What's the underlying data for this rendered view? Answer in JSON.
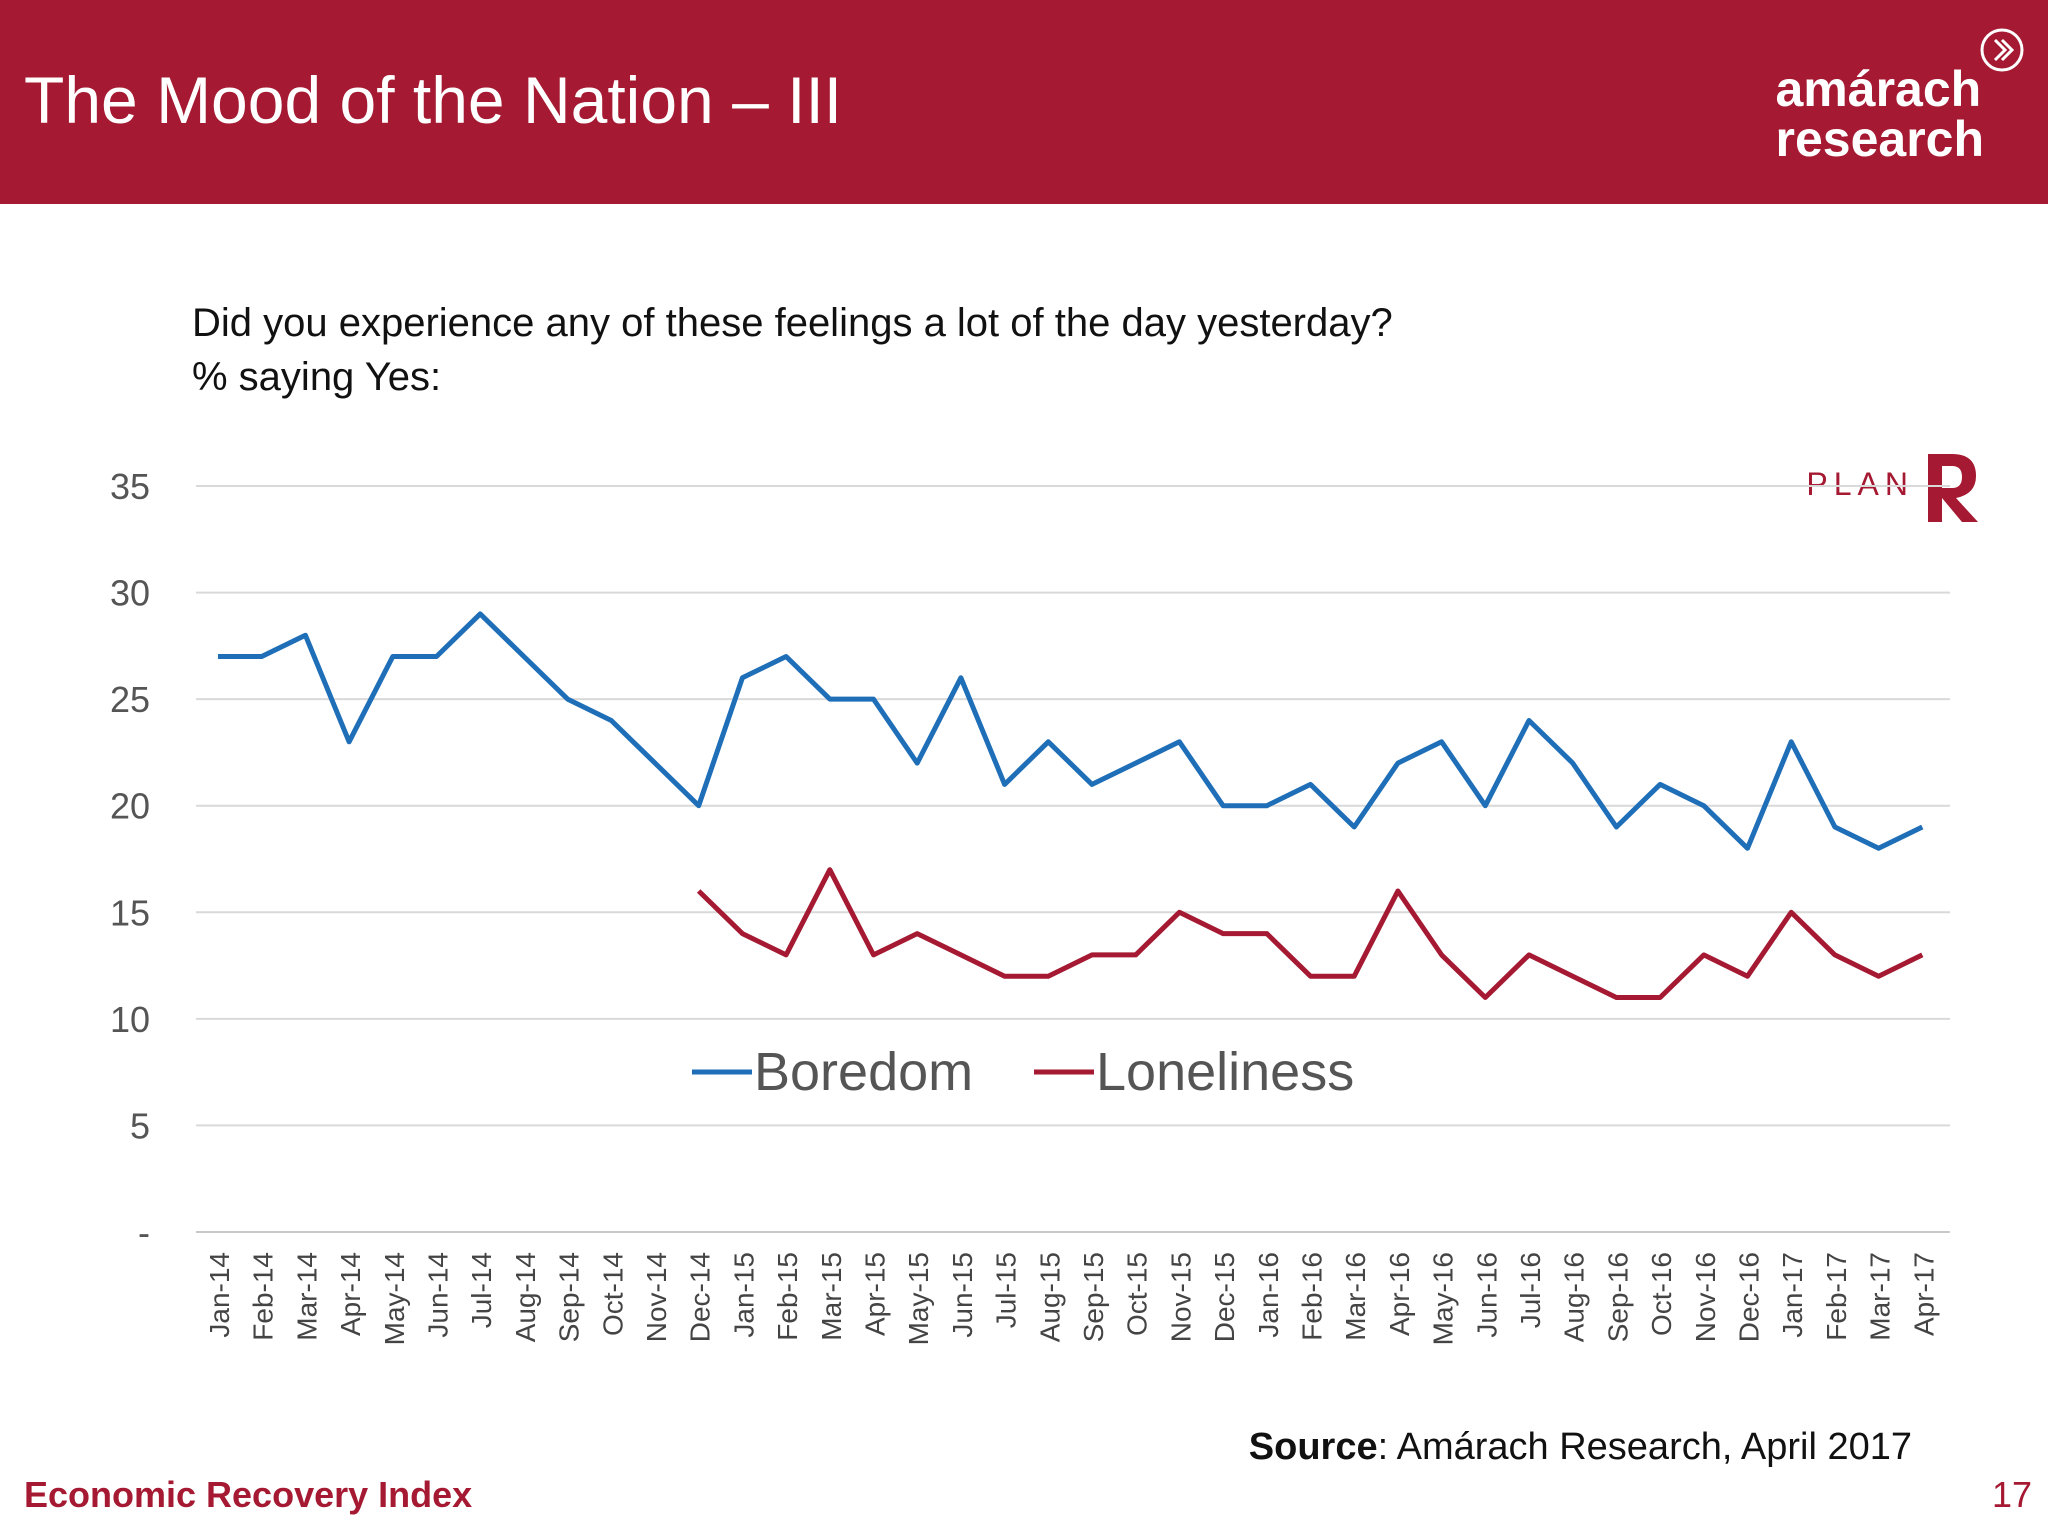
{
  "header": {
    "title": "The Mood of the Nation – III",
    "brand_line1": "amárach",
    "brand_line2": "research",
    "accent_color": "#a51a32"
  },
  "question": {
    "line1": "Did you experience any of these feelings a lot of the day yesterday?",
    "line2": "% saying Yes:"
  },
  "plan_logo": {
    "text": "PLAN",
    "letter": "R"
  },
  "source": {
    "label": "Source",
    "text": ": Amárach Research, April 2017"
  },
  "footer": {
    "left": "Economic Recovery Index",
    "page_number": "17"
  },
  "chart_data": {
    "type": "line",
    "title": "",
    "xlabel": "",
    "ylabel": "",
    "ylim": [
      0,
      35
    ],
    "yticks": [
      {
        "value": 0,
        "label": "-"
      },
      {
        "value": 5,
        "label": "5"
      },
      {
        "value": 10,
        "label": "10"
      },
      {
        "value": 15,
        "label": "15"
      },
      {
        "value": 20,
        "label": "20"
      },
      {
        "value": 25,
        "label": "25"
      },
      {
        "value": 30,
        "label": "30"
      },
      {
        "value": 35,
        "label": "35"
      }
    ],
    "grid": true,
    "legend_position": "inside-middle",
    "categories": [
      "Jan-14",
      "Feb-14",
      "Mar-14",
      "Apr-14",
      "May-14",
      "Jun-14",
      "Jul-14",
      "Aug-14",
      "Sep-14",
      "Oct-14",
      "Nov-14",
      "Dec-14",
      "Jan-15",
      "Feb-15",
      "Mar-15",
      "Apr-15",
      "May-15",
      "Jun-15",
      "Jul-15",
      "Aug-15",
      "Sep-15",
      "Oct-15",
      "Nov-15",
      "Dec-15",
      "Jan-16",
      "Feb-16",
      "Mar-16",
      "Apr-16",
      "May-16",
      "Jun-16",
      "Jul-16",
      "Aug-16",
      "Sep-16",
      "Oct-16",
      "Nov-16",
      "Dec-16",
      "Jan-17",
      "Feb-17",
      "Mar-17",
      "Apr-17"
    ],
    "series": [
      {
        "name": "Boredom",
        "color": "#1e6eb8",
        "values": [
          27,
          27,
          28,
          23,
          27,
          27,
          29,
          27,
          25,
          24,
          22,
          20,
          26,
          27,
          25,
          25,
          22,
          26,
          21,
          23,
          21,
          22,
          23,
          20,
          20,
          21,
          19,
          22,
          23,
          20,
          24,
          22,
          19,
          21,
          20,
          18,
          23,
          19,
          18,
          19
        ]
      },
      {
        "name": "Loneliness",
        "color": "#a51a32",
        "values": [
          null,
          null,
          null,
          null,
          null,
          null,
          null,
          null,
          null,
          null,
          null,
          16,
          14,
          13,
          17,
          13,
          14,
          13,
          12,
          12,
          13,
          13,
          15,
          14,
          14,
          12,
          12,
          16,
          13,
          11,
          13,
          12,
          11,
          11,
          13,
          12,
          15,
          13,
          12,
          13
        ]
      }
    ]
  }
}
